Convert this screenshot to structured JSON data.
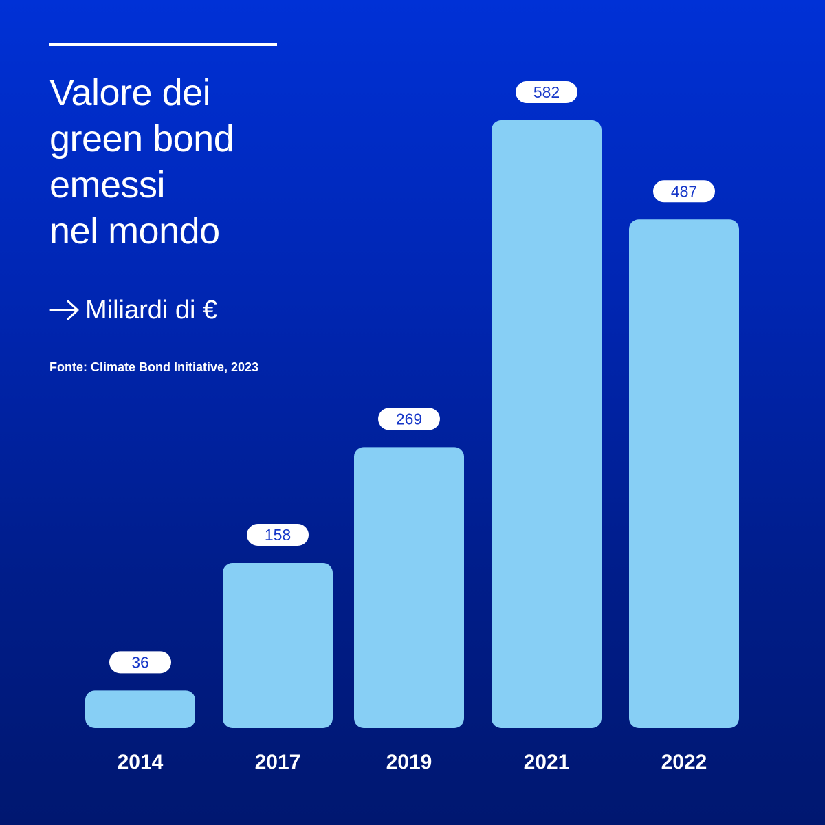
{
  "header": {
    "title_lines": [
      "Valore dei",
      "green bond",
      "emessi",
      "nel mondo"
    ],
    "unit_label": "Miliardi di €",
    "source": "Fonte: Climate Bond Initiative, 2023"
  },
  "colors": {
    "background_top": "#0031d6",
    "background_bottom": "#001770",
    "bar": "#87cff5",
    "pill": "#ffffff",
    "pill_text": "#1536c8",
    "text": "#ffffff"
  },
  "chart_data": {
    "type": "bar",
    "categories": [
      "2014",
      "2017",
      "2019",
      "2021",
      "2022"
    ],
    "values": [
      36,
      158,
      269,
      582,
      487
    ],
    "value_labels": [
      "36",
      "158",
      "269",
      "582",
      "487"
    ],
    "title": "Valore dei green bond emessi nel mondo",
    "xlabel": "",
    "ylabel": "Miliardi di €",
    "ylim": [
      0,
      582
    ],
    "grid": false,
    "legend": "none",
    "data_labels": "pill above each bar"
  }
}
